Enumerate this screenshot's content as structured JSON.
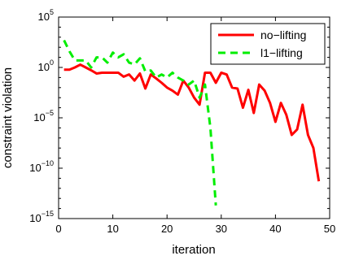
{
  "chart_data": {
    "type": "line",
    "title": "",
    "xlabel": "iteration",
    "ylabel": "constraint violation",
    "xlim": [
      0,
      50
    ],
    "ylim": [
      1e-15,
      100000.0
    ],
    "yscale": "log",
    "grid": false,
    "legend_position": "top-right",
    "xticks": [
      0,
      10,
      20,
      30,
      40,
      50
    ],
    "xtick_labels": [
      "0",
      "10",
      "20",
      "30",
      "40",
      "50"
    ],
    "yticks": [
      1e-15,
      1e-10,
      1e-05,
      1,
      100000.0
    ],
    "ytick_labels": [
      {
        "base": "10",
        "exp": "−15"
      },
      {
        "base": "10",
        "exp": "−10"
      },
      {
        "base": "10",
        "exp": "−5"
      },
      {
        "base": "10",
        "exp": "0"
      },
      {
        "base": "10",
        "exp": "5"
      }
    ],
    "series": [
      {
        "name": "no−lifting",
        "color": "#ff0000",
        "dash": "solid",
        "x": [
          1,
          2,
          3,
          4,
          5,
          6,
          7,
          8,
          9,
          10,
          11,
          12,
          13,
          14,
          15,
          16,
          17,
          18,
          19,
          20,
          21,
          22,
          23,
          24,
          25,
          26,
          27,
          28,
          29,
          30,
          31,
          32,
          33,
          34,
          35,
          36,
          37,
          38,
          39,
          40,
          41,
          42,
          43,
          44,
          45,
          46,
          47,
          48
        ],
        "y": [
          0.6,
          0.6,
          1.0,
          1.9,
          1.0,
          0.52,
          0.25,
          0.3,
          0.3,
          0.3,
          0.3,
          0.12,
          0.2,
          0.05,
          0.25,
          0.008,
          0.2,
          0.08,
          0.03,
          0.01,
          0.005,
          0.002,
          0.05,
          0.01,
          0.001,
          0.0002,
          0.3,
          0.3,
          0.03,
          0.3,
          0.2,
          0.01,
          0.008,
          0.0001,
          0.006,
          3e-05,
          0.02,
          0.005,
          0.0003,
          4e-06,
          0.0003,
          2e-05,
          2e-07,
          7e-07,
          0.0002,
          2e-07,
          1e-08,
          5e-12
        ]
      },
      {
        "name": "l1−lifting",
        "color": "#00ee00",
        "dash": "dashed",
        "x": [
          1,
          2,
          3,
          4,
          5,
          6,
          7,
          8,
          9,
          10,
          11,
          12,
          13,
          14,
          15,
          16,
          17,
          18,
          19,
          20,
          21,
          22,
          23,
          24,
          25,
          26,
          27,
          28,
          29
        ],
        "y": [
          500,
          40,
          5,
          5,
          5,
          1,
          10,
          10,
          3,
          30,
          10,
          20,
          3,
          2,
          8,
          0.4,
          0.5,
          0.1,
          0.2,
          0.1,
          0.3,
          0.1,
          0.05,
          0.02,
          0.05,
          0.001,
          0.02,
          1e-06,
          2e-14
        ]
      }
    ]
  }
}
